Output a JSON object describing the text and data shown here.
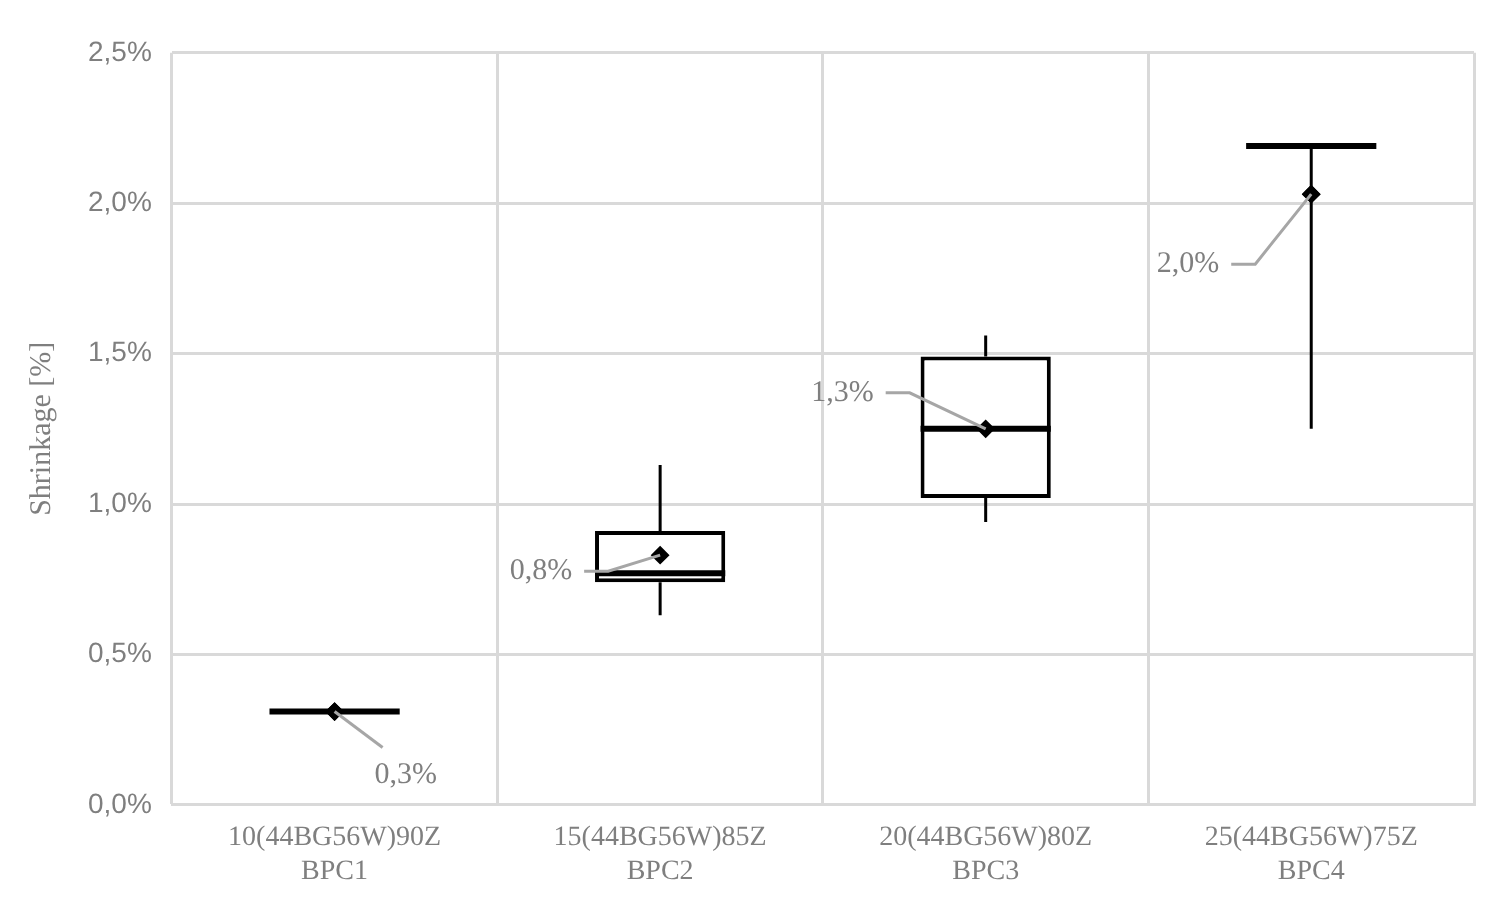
{
  "chart_data": {
    "type": "box",
    "ylabel": "Shrinkage [%]",
    "categories": [
      "10(44BG56W)90Z\nBPC1",
      "15(44BG56W)85Z\nBPC2",
      "20(44BG56W)80Z\nBPC3",
      "25(44BG56W)75Z\nBPC4"
    ],
    "boxes": [
      {
        "low": 0.31,
        "q1": 0.31,
        "median": 0.31,
        "q3": 0.31,
        "high": 0.31,
        "mean": 0.31
      },
      {
        "low": 0.63,
        "q1": 0.74,
        "median": 0.77,
        "q3": 0.91,
        "high": 1.13,
        "mean": 0.83
      },
      {
        "low": 0.94,
        "q1": 1.02,
        "median": 1.25,
        "q3": 1.49,
        "high": 1.56,
        "mean": 1.25
      },
      {
        "low": 1.25,
        "q1": 2.19,
        "median": 2.19,
        "q3": 2.19,
        "high": 2.19,
        "mean": 2.03
      }
    ],
    "color": "#000000",
    "ylim": [
      0,
      2.5
    ],
    "yticks": [
      {
        "value": 0,
        "label": "0,0%"
      },
      {
        "value": 0.5,
        "label": "0,5%"
      },
      {
        "value": 1,
        "label": "1,0%"
      },
      {
        "value": 1.5,
        "label": "1,5%"
      },
      {
        "value": 2,
        "label": "2,0%"
      },
      {
        "value": 2.5,
        "label": "2,5%"
      }
    ],
    "grid": true,
    "marker": "diamond",
    "annotations": [
      {
        "text": "0,3%",
        "x": "10(44BG56W)90Z\nBPC1",
        "y": 0.31
      },
      "0,8%",
      {
        "text": "1,3%",
        "x": "20(44BG56W)80Z\nBPC3",
        "y": 1.25
      },
      {
        "text": "2,0%",
        "x": "25(44BG56W)75Z\nBPC4",
        "y": 2.03
      }
    ]
  }
}
